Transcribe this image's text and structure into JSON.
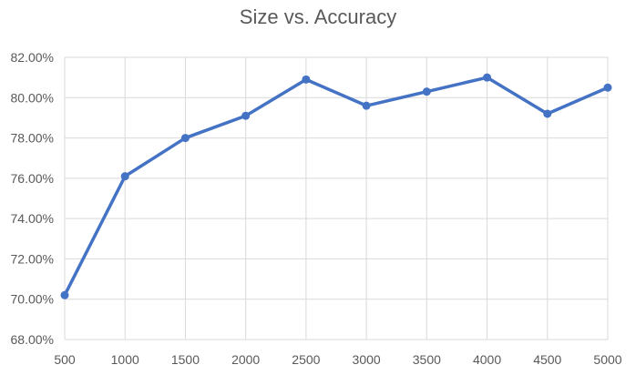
{
  "chart_data": {
    "type": "line",
    "title": "Size vs. Accuracy",
    "xlabel": "",
    "ylabel": "",
    "x": [
      500,
      1000,
      1500,
      2000,
      2500,
      3000,
      3500,
      4000,
      4500,
      5000
    ],
    "series": [
      {
        "values": [
          0.702,
          0.761,
          0.78,
          0.791,
          0.809,
          0.796,
          0.803,
          0.81,
          0.792,
          0.805
        ]
      }
    ],
    "xlim": [
      500,
      5000
    ],
    "ylim": [
      0.68,
      0.82
    ],
    "x_ticks": [
      "500",
      "1000",
      "1500",
      "2000",
      "2500",
      "3000",
      "3500",
      "4000",
      "4500",
      "5000"
    ],
    "y_ticks": [
      "68.00%",
      "70.00%",
      "72.00%",
      "74.00%",
      "76.00%",
      "78.00%",
      "80.00%",
      "82.00%"
    ],
    "grid": true,
    "colors": {
      "series": "#4472C4",
      "grid": "#d9d9d9",
      "text": "#595959"
    }
  }
}
